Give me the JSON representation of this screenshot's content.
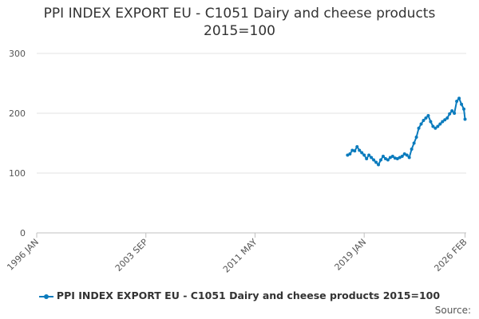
{
  "chart_data": {
    "type": "line",
    "title_lines": [
      "PPI INDEX EXPORT EU - C1051 Dairy and cheese products",
      "2015=100"
    ],
    "y_ticks": [
      0,
      100,
      200,
      300
    ],
    "ylim": [
      0,
      300
    ],
    "x_ticks": [
      "1996 JAN",
      "2003 SEP",
      "2011 MAY",
      "2019 JAN",
      "2026 FEB"
    ],
    "x_range": [
      "1996-01",
      "2026-03"
    ],
    "grid": "horizontal",
    "legend_position": "bottom",
    "series": [
      {
        "name": "PPI INDEX EXPORT EU - C1051 Dairy and cheese products 2015=100",
        "color": "#0a7bbd",
        "points": [
          [
            "2017-11",
            130
          ],
          [
            "2018-01",
            132
          ],
          [
            "2018-03",
            138
          ],
          [
            "2018-05",
            137
          ],
          [
            "2018-07",
            144
          ],
          [
            "2018-09",
            138
          ],
          [
            "2018-11",
            134
          ],
          [
            "2019-01",
            130
          ],
          [
            "2019-03",
            124
          ],
          [
            "2019-05",
            130
          ],
          [
            "2019-07",
            126
          ],
          [
            "2019-09",
            122
          ],
          [
            "2019-11",
            118
          ],
          [
            "2020-01",
            114
          ],
          [
            "2020-03",
            122
          ],
          [
            "2020-05",
            128
          ],
          [
            "2020-07",
            124
          ],
          [
            "2020-09",
            122
          ],
          [
            "2020-11",
            126
          ],
          [
            "2021-01",
            128
          ],
          [
            "2021-03",
            125
          ],
          [
            "2021-05",
            124
          ],
          [
            "2021-07",
            126
          ],
          [
            "2021-09",
            128
          ],
          [
            "2021-11",
            132
          ],
          [
            "2022-01",
            130
          ],
          [
            "2022-03",
            126
          ],
          [
            "2022-05",
            140
          ],
          [
            "2022-07",
            150
          ],
          [
            "2022-09",
            160
          ],
          [
            "2022-11",
            175
          ],
          [
            "2023-01",
            182
          ],
          [
            "2023-03",
            188
          ],
          [
            "2023-05",
            192
          ],
          [
            "2023-07",
            196
          ],
          [
            "2023-09",
            186
          ],
          [
            "2023-11",
            178
          ],
          [
            "2024-01",
            175
          ],
          [
            "2024-03",
            178
          ],
          [
            "2024-05",
            182
          ],
          [
            "2024-07",
            186
          ],
          [
            "2024-09",
            189
          ],
          [
            "2024-11",
            192
          ],
          [
            "2025-01",
            199
          ],
          [
            "2025-03",
            204
          ],
          [
            "2025-05",
            200
          ],
          [
            "2025-07",
            220
          ],
          [
            "2025-09",
            225
          ],
          [
            "2025-11",
            215
          ],
          [
            "2026-01",
            207
          ],
          [
            "2026-02",
            190
          ]
        ]
      }
    ],
    "source_label": "Source:"
  }
}
